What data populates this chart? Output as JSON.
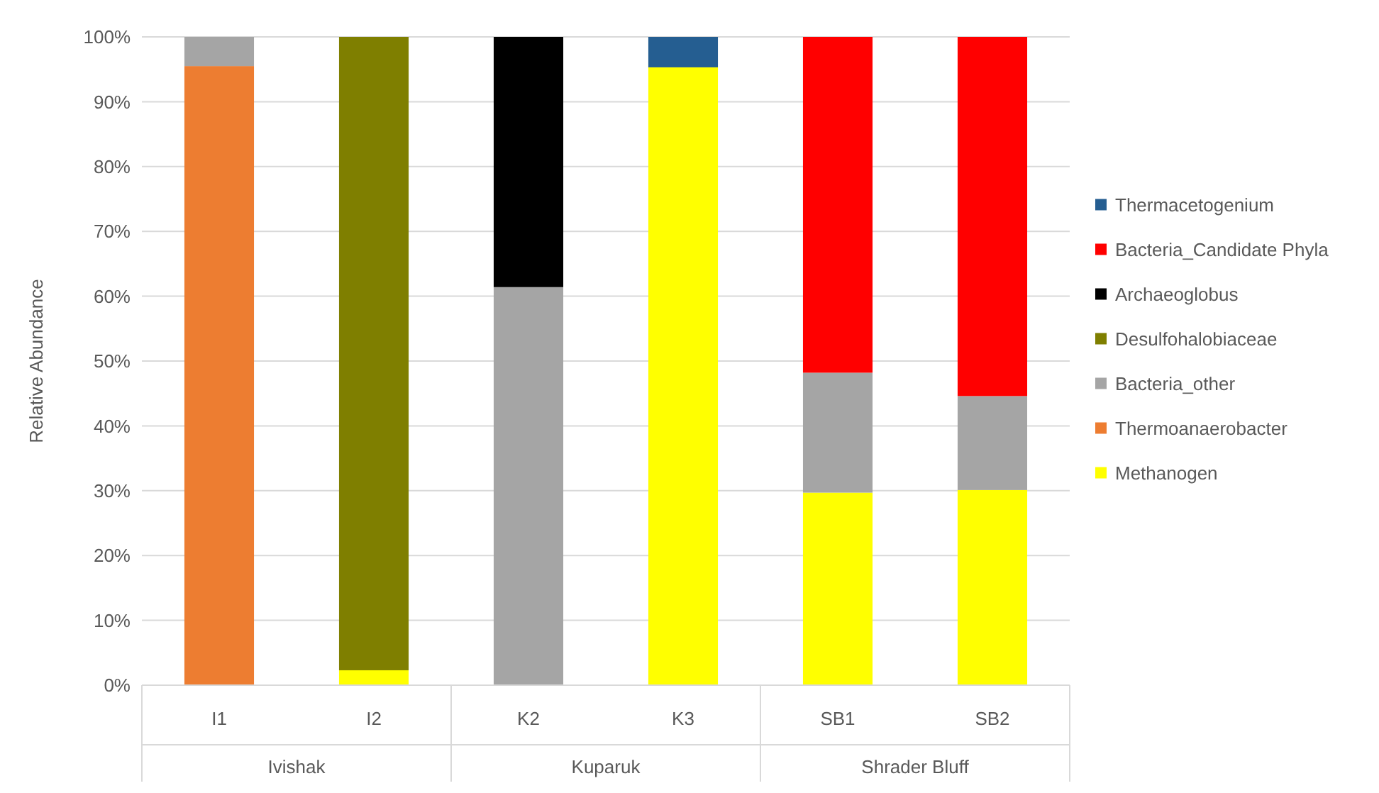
{
  "chart_data": {
    "type": "bar",
    "stacked": true,
    "ylabel": "Relative Abundance",
    "categories": [
      "I1",
      "I2",
      "K2",
      "K3",
      "SB1",
      "SB2"
    ],
    "series": [
      {
        "name": "Methanogen",
        "color": "#ffff00",
        "values": [
          null,
          2.3,
          null,
          95.3,
          29.7,
          30.1
        ]
      },
      {
        "name": "Thermoanaerobacter",
        "color": "#ed7d31",
        "values": [
          95.5,
          null,
          null,
          null,
          null,
          null
        ]
      },
      {
        "name": "Bacteria_other",
        "color": "#a5a5a5",
        "values": [
          4.5,
          null,
          61.4,
          null,
          18.5,
          14.5
        ]
      },
      {
        "name": "Desulfohalobiaceae",
        "color": "#7f7f00",
        "values": [
          null,
          97.7,
          null,
          null,
          null,
          null
        ]
      },
      {
        "name": "Archaeoglobus",
        "color": "#000000",
        "values": [
          null,
          null,
          38.6,
          null,
          null,
          null
        ]
      },
      {
        "name": "Bacteria_Candidate Phyla",
        "color": "#ff0000",
        "values": [
          null,
          null,
          null,
          null,
          51.8,
          55.4
        ]
      },
      {
        "name": "Thermacetogenium",
        "color": "#255e91",
        "values": [
          null,
          null,
          null,
          4.7,
          null,
          null
        ]
      }
    ],
    "ylim": [
      0,
      100
    ],
    "yticks": [
      {
        "value": 0,
        "label": "0%"
      },
      {
        "value": 10,
        "label": "10%"
      },
      {
        "value": 20,
        "label": "20%"
      },
      {
        "value": 30,
        "label": "30%"
      },
      {
        "value": 40,
        "label": "40%"
      },
      {
        "value": 50,
        "label": "50%"
      },
      {
        "value": 60,
        "label": "60%"
      },
      {
        "value": 70,
        "label": "70%"
      },
      {
        "value": 80,
        "label": "80%"
      },
      {
        "value": 90,
        "label": "90%"
      },
      {
        "value": 100,
        "label": "100%"
      }
    ],
    "grid": "y",
    "legend": "right",
    "annotations": [
      "Ivishak",
      "Kuparuk",
      "Shrader Bluff"
    ]
  }
}
